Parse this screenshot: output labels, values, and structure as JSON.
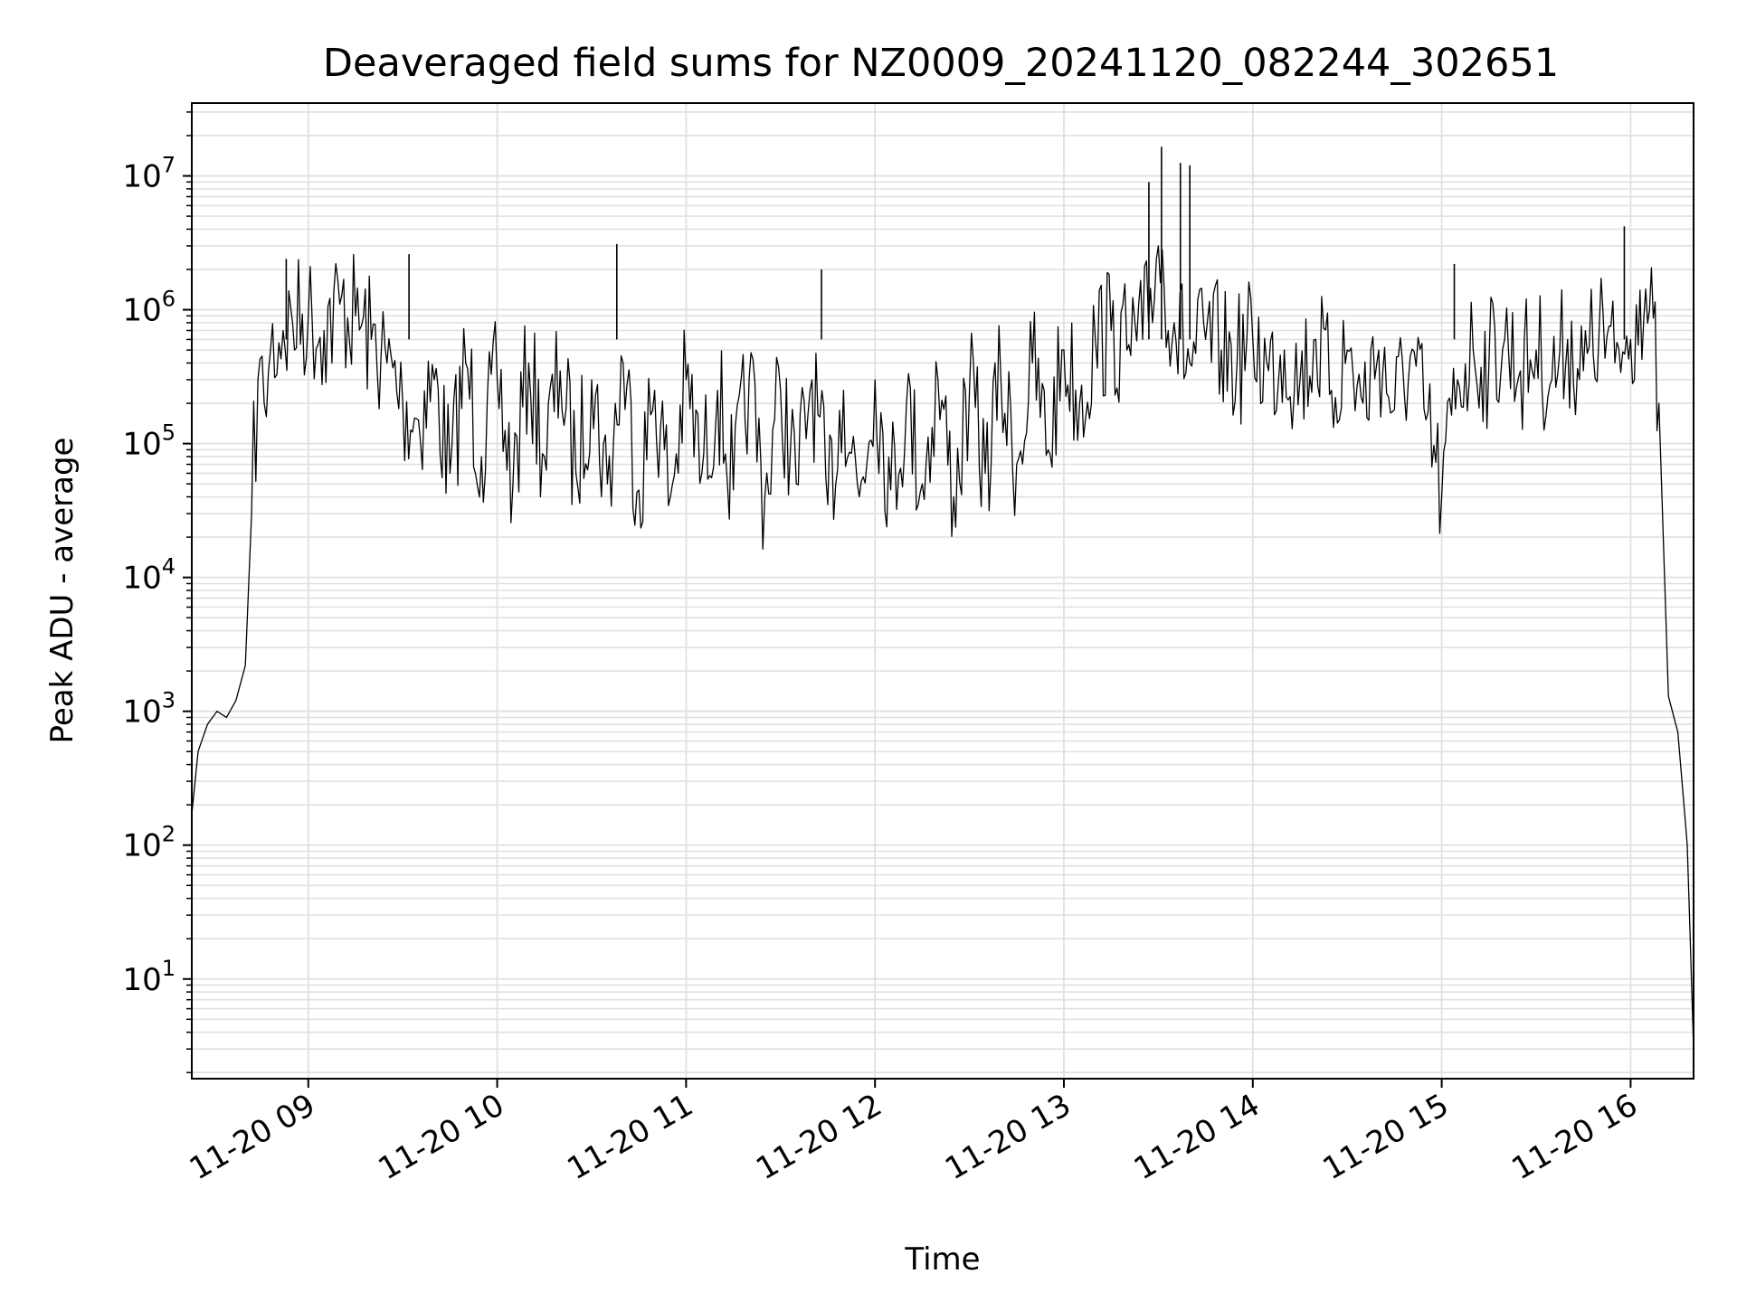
{
  "chart_data": {
    "type": "line",
    "title": "Deaveraged field sums for NZ0009_20241120_082244_302651",
    "xlabel": "Time",
    "ylabel": "Peak ADU - average",
    "yscale": "log",
    "xlim": [
      "2024-11-20T08:23",
      "2024-11-20T16:20"
    ],
    "ylim": [
      1.8,
      35000000
    ],
    "x_ticks": [
      {
        "t": "2024-11-20T09:00",
        "label": "11-20 09"
      },
      {
        "t": "2024-11-20T10:00",
        "label": "11-20 10"
      },
      {
        "t": "2024-11-20T11:00",
        "label": "11-20 11"
      },
      {
        "t": "2024-11-20T12:00",
        "label": "11-20 12"
      },
      {
        "t": "2024-11-20T13:00",
        "label": "11-20 13"
      },
      {
        "t": "2024-11-20T14:00",
        "label": "11-20 14"
      },
      {
        "t": "2024-11-20T15:00",
        "label": "11-20 15"
      },
      {
        "t": "2024-11-20T16:00",
        "label": "11-20 16"
      }
    ],
    "y_ticks": [
      {
        "value": 10,
        "base": "10",
        "exp": "1"
      },
      {
        "value": 100,
        "base": "10",
        "exp": "2"
      },
      {
        "value": 1000,
        "base": "10",
        "exp": "3"
      },
      {
        "value": 10000,
        "base": "10",
        "exp": "4"
      },
      {
        "value": 100000,
        "base": "10",
        "exp": "5"
      },
      {
        "value": 1000000,
        "base": "10",
        "exp": "6"
      },
      {
        "value": 10000000,
        "base": "10",
        "exp": "7"
      }
    ],
    "grid": true,
    "line_color": "#000000",
    "grid_color": "#e0e0e0",
    "series": [
      {
        "x": [
          "2024-11-20T08:23",
          "2024-11-20T08:25",
          "2024-11-20T08:28",
          "2024-11-20T08:31",
          "2024-11-20T08:34",
          "2024-11-20T08:37",
          "2024-11-20T08:40",
          "2024-11-20T08:42",
          "2024-11-20T08:44",
          "2024-11-20T08:46",
          "2024-11-20T08:48",
          "2024-11-20T08:52",
          "2024-11-20T08:55",
          "2024-11-20T09:00",
          "2024-11-20T09:05",
          "2024-11-20T09:10",
          "2024-11-20T09:15",
          "2024-11-20T09:20",
          "2024-11-20T09:25",
          "2024-11-20T09:30",
          "2024-11-20T09:35",
          "2024-11-20T09:40",
          "2024-11-20T09:45",
          "2024-11-20T09:50",
          "2024-11-20T09:55",
          "2024-11-20T10:00",
          "2024-11-20T10:05",
          "2024-11-20T10:10",
          "2024-11-20T10:15",
          "2024-11-20T10:20",
          "2024-11-20T10:25",
          "2024-11-20T10:30",
          "2024-11-20T10:35",
          "2024-11-20T10:40",
          "2024-11-20T10:45",
          "2024-11-20T10:50",
          "2024-11-20T10:55",
          "2024-11-20T11:00",
          "2024-11-20T11:05",
          "2024-11-20T11:10",
          "2024-11-20T11:15",
          "2024-11-20T11:20",
          "2024-11-20T11:25",
          "2024-11-20T11:30",
          "2024-11-20T11:35",
          "2024-11-20T11:40",
          "2024-11-20T11:45",
          "2024-11-20T11:50",
          "2024-11-20T11:55",
          "2024-11-20T12:00",
          "2024-11-20T12:05",
          "2024-11-20T12:10",
          "2024-11-20T12:15",
          "2024-11-20T12:20",
          "2024-11-20T12:25",
          "2024-11-20T12:30",
          "2024-11-20T12:35",
          "2024-11-20T12:40",
          "2024-11-20T12:45",
          "2024-11-20T12:50",
          "2024-11-20T12:55",
          "2024-11-20T13:00",
          "2024-11-20T13:05",
          "2024-11-20T13:10",
          "2024-11-20T13:15",
          "2024-11-20T13:20",
          "2024-11-20T13:25",
          "2024-11-20T13:30",
          "2024-11-20T13:35",
          "2024-11-20T13:40",
          "2024-11-20T13:45",
          "2024-11-20T13:50",
          "2024-11-20T13:55",
          "2024-11-20T14:00",
          "2024-11-20T14:05",
          "2024-11-20T14:10",
          "2024-11-20T14:15",
          "2024-11-20T14:20",
          "2024-11-20T14:25",
          "2024-11-20T14:30",
          "2024-11-20T14:35",
          "2024-11-20T14:40",
          "2024-11-20T14:45",
          "2024-11-20T14:50",
          "2024-11-20T14:55",
          "2024-11-20T15:00",
          "2024-11-20T15:05",
          "2024-11-20T15:10",
          "2024-11-20T15:15",
          "2024-11-20T15:20",
          "2024-11-20T15:25",
          "2024-11-20T15:30",
          "2024-11-20T15:35",
          "2024-11-20T15:40",
          "2024-11-20T15:45",
          "2024-11-20T15:50",
          "2024-11-20T15:55",
          "2024-11-20T16:00",
          "2024-11-20T16:03",
          "2024-11-20T16:06",
          "2024-11-20T16:09",
          "2024-11-20T16:12",
          "2024-11-20T16:15",
          "2024-11-20T16:18",
          "2024-11-20T16:20"
        ],
        "y": [
          170,
          500,
          800,
          1000,
          900,
          1200,
          2200,
          30000,
          300000,
          200000,
          500000,
          700000,
          800000,
          900000,
          700000,
          1100000,
          900000,
          600000,
          400000,
          200000,
          150000,
          300000,
          60000,
          400000,
          80000,
          300000,
          50000,
          400000,
          80000,
          350000,
          60000,
          300000,
          50000,
          400000,
          45000,
          250000,
          40000,
          300000,
          60000,
          250000,
          45000,
          300000,
          40000,
          250000,
          50000,
          300000,
          35000,
          250000,
          40000,
          300000,
          45000,
          200000,
          50000,
          300000,
          40000,
          250000,
          60000,
          300000,
          70000,
          400000,
          90000,
          500000,
          200000,
          600000,
          700000,
          500000,
          600000,
          3000000,
          800000,
          400000,
          600000,
          500000,
          400000,
          600000,
          350000,
          500000,
          300000,
          600000,
          250000,
          500000,
          200000,
          500000,
          180000,
          450000,
          150000,
          40000,
          300000,
          500000,
          400000,
          600000,
          350000,
          500000,
          300000,
          600000,
          350000,
          700000,
          400000,
          600000,
          1400000,
          1000000,
          200000,
          1300,
          700,
          100,
          3
        ]
      }
    ],
    "spikes": [
      {
        "x": "2024-11-20T08:53",
        "y": 2400000
      },
      {
        "x": "2024-11-20T09:32",
        "y": 2600000
      },
      {
        "x": "2024-11-20T10:38",
        "y": 3100000
      },
      {
        "x": "2024-11-20T11:43",
        "y": 2000000
      },
      {
        "x": "2024-11-20T13:27",
        "y": 9000000
      },
      {
        "x": "2024-11-20T13:31",
        "y": 16500000
      },
      {
        "x": "2024-11-20T13:37",
        "y": 12500000
      },
      {
        "x": "2024-11-20T13:40",
        "y": 12000000
      },
      {
        "x": "2024-11-20T15:04",
        "y": 2200000
      },
      {
        "x": "2024-11-20T15:58",
        "y": 4200000
      }
    ]
  }
}
